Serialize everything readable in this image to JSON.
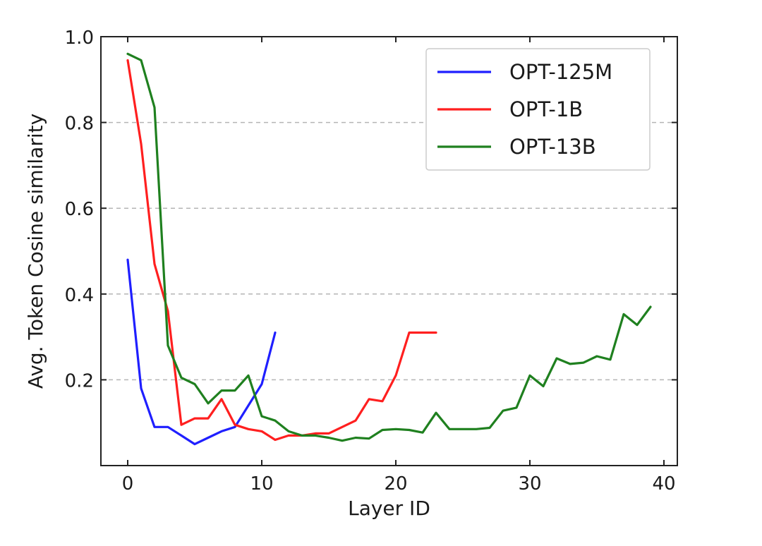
{
  "chart_data": {
    "type": "line",
    "title": "",
    "xlabel": "Layer ID",
    "ylabel": "Avg. Token Cosine similarity",
    "xlim": [
      -2,
      41
    ],
    "ylim": [
      0.0,
      1.0
    ],
    "xticks": [
      0,
      10,
      20,
      30,
      40
    ],
    "yticks": [
      0.2,
      0.4,
      0.6,
      0.8,
      1.0
    ],
    "xtick_labels": [
      "0",
      "10",
      "20",
      "30",
      "40"
    ],
    "ytick_labels": [
      "0.2",
      "0.4",
      "0.6",
      "0.8",
      "1.0"
    ],
    "grid": "horizontal-dashed",
    "legend_position": "top-right",
    "series": [
      {
        "name": "OPT-125M",
        "color": "#1f1fff",
        "x": [
          0,
          1,
          2,
          3,
          4,
          5,
          6,
          7,
          8,
          9,
          10,
          11
        ],
        "y": [
          0.48,
          0.18,
          0.09,
          0.09,
          0.07,
          0.05,
          0.065,
          0.08,
          0.09,
          0.14,
          0.19,
          0.31
        ]
      },
      {
        "name": "OPT-1B",
        "color": "#ff1f1f",
        "x": [
          0,
          1,
          2,
          3,
          4,
          5,
          6,
          7,
          8,
          9,
          10,
          11,
          12,
          13,
          14,
          15,
          16,
          17,
          18,
          19,
          20,
          21,
          22,
          23
        ],
        "y": [
          0.945,
          0.75,
          0.47,
          0.36,
          0.095,
          0.11,
          0.11,
          0.155,
          0.095,
          0.085,
          0.08,
          0.06,
          0.07,
          0.07,
          0.075,
          0.075,
          0.09,
          0.105,
          0.155,
          0.15,
          0.21,
          0.31,
          0.31,
          0.31
        ]
      },
      {
        "name": "OPT-13B",
        "color": "#1f801f",
        "x": [
          0,
          1,
          2,
          3,
          4,
          5,
          6,
          7,
          8,
          9,
          10,
          11,
          12,
          13,
          14,
          15,
          16,
          17,
          18,
          19,
          20,
          21,
          22,
          23,
          24,
          25,
          26,
          27,
          28,
          29,
          30,
          31,
          32,
          33,
          34,
          35,
          36,
          37,
          38,
          39
        ],
        "y": [
          0.96,
          0.945,
          0.835,
          0.28,
          0.205,
          0.19,
          0.145,
          0.175,
          0.175,
          0.21,
          0.115,
          0.105,
          0.08,
          0.07,
          0.07,
          0.065,
          0.058,
          0.065,
          0.063,
          0.083,
          0.085,
          0.083,
          0.077,
          0.123,
          0.085,
          0.085,
          0.085,
          0.088,
          0.128,
          0.135,
          0.21,
          0.185,
          0.25,
          0.237,
          0.24,
          0.255,
          0.247,
          0.353,
          0.328,
          0.37
        ]
      }
    ]
  }
}
